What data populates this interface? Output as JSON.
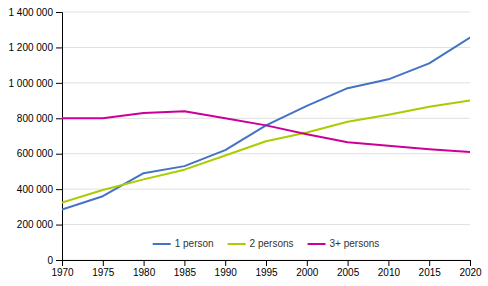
{
  "chart_data": {
    "type": "line",
    "x": [
      1970,
      1975,
      1980,
      1985,
      1990,
      1995,
      2000,
      2005,
      2010,
      2015,
      2020
    ],
    "series": [
      {
        "name": "1 person",
        "color": "#4472C4",
        "values": [
          285000,
          360000,
          490000,
          530000,
          620000,
          760000,
          870000,
          970000,
          1020000,
          1110000,
          1255000
        ]
      },
      {
        "name": "2 persons",
        "color": "#AACC00",
        "values": [
          325000,
          395000,
          455000,
          510000,
          590000,
          670000,
          720000,
          780000,
          820000,
          865000,
          900000
        ]
      },
      {
        "name": "3+ persons",
        "color": "#CC0099",
        "values": [
          800000,
          800000,
          830000,
          840000,
          800000,
          760000,
          710000,
          665000,
          645000,
          625000,
          610000
        ]
      }
    ],
    "xlim": [
      1970,
      2020
    ],
    "ylim": [
      0,
      1400000
    ],
    "xticks": [
      1970,
      1975,
      1980,
      1985,
      1990,
      1995,
      2000,
      2005,
      2010,
      2015,
      2020
    ],
    "yticks": [
      0,
      {
        "value": 200000,
        "label": "200 000"
      },
      {
        "value": 400000,
        "label": "400 000"
      },
      {
        "value": 600000,
        "label": "600 000"
      },
      {
        "value": 800000,
        "label": "800 000"
      },
      {
        "value": 1000000,
        "label": "1 000 000"
      },
      {
        "value": 1200000,
        "label": "1 200 000"
      },
      {
        "value": 1400000,
        "label": "1 400 000"
      }
    ],
    "grid": true,
    "legend": "bottom"
  }
}
